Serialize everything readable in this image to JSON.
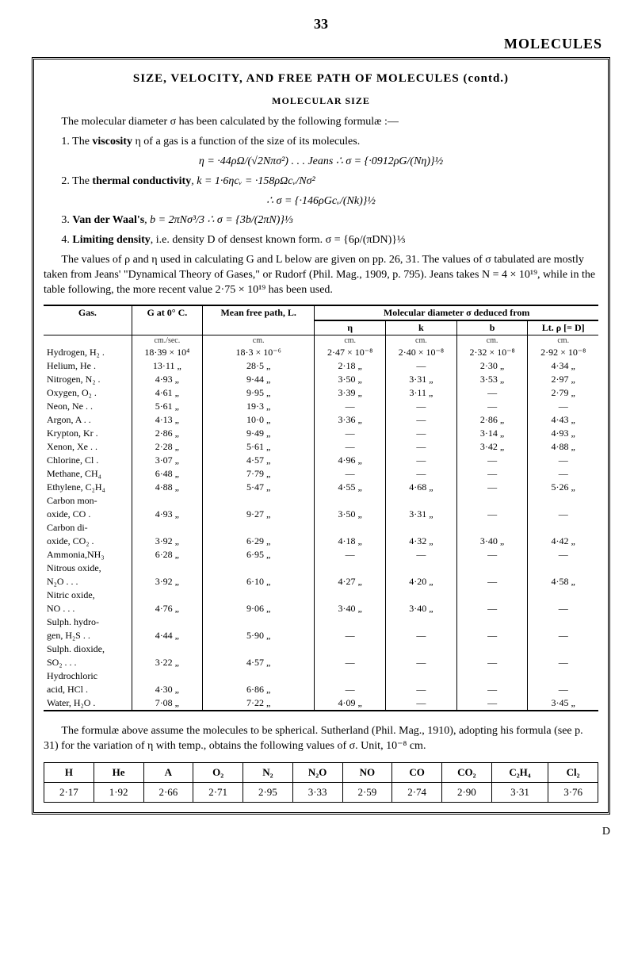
{
  "page_number": "33",
  "heading_right": "MOLECULES",
  "section_title": "SIZE, VELOCITY, AND FREE PATH OF MOLECULES (contd.)",
  "subhead": "MOLECULAR SIZE",
  "para_intro": "The molecular diameter σ has been calculated by the following formulæ :—",
  "item1_label": "1. The ",
  "item1_bold": "viscosity",
  "item1_tail": " η of a gas is a function of the size of its molecules.",
  "item1_formula": "η = ·44ρΩ/(√2Nπσ²)   .   .   .   Jeans   ∴ σ = {·0912ρG/(Nη)}½",
  "item2_label": "2. The ",
  "item2_bold": "thermal conductivity",
  "item2_tail": ", k = 1·6ηcᵥ = ·158ρΩcᵥ/Nσ²",
  "item2_formula": "∴ σ = {·146ρGcᵥ/(Nk)}½",
  "item3_label": "3. ",
  "item3_bold": "Van der Waal's",
  "item3_tail": ", b = 2πNσ³/3                      ∴ σ = {3b/(2πN)}⅓",
  "item4_label": "4. ",
  "item4_bold": "Limiting density",
  "item4_tail": ", i.e. density D of densest known form.   σ = {6ρ/(πDN)}⅓",
  "para_values": "The values of ρ and η used in calculating G and L below are given on pp. 26, 31. The values of σ tabulated are mostly taken from Jeans' \"Dynamical Theory of Gases,\" or Rudorf (Phil. Mag., 1909, p. 795). Jeans takes N = 4 × 10¹⁹, while in the table following, the more recent value 2·75 × 10¹⁹ has been used.",
  "table_headers": {
    "gas": "Gas.",
    "g": "G at 0° C.",
    "mean": "Mean free path, L.",
    "molec": "Molecular diameter σ deduced from",
    "eta": "η",
    "k": "k",
    "b": "b",
    "lt": "Lt. ρ [= D]"
  },
  "unit_row": {
    "g": "cm./sec.",
    "mean": "cm.",
    "eta": "cm.",
    "k": "cm.",
    "b": "cm.",
    "lt": "cm."
  },
  "rows": [
    {
      "gas": "Hydrogen, H₂ .",
      "g": "18·39 × 10⁴",
      "mean": "18·3 × 10⁻⁶",
      "eta": "2·47 × 10⁻⁸",
      "k": "2·40 × 10⁻⁸",
      "b": "2·32 × 10⁻⁸",
      "lt": "2·92 × 10⁻⁸"
    },
    {
      "gas": "Helium, He   .",
      "g": "13·11   „",
      "mean": "28·5     „",
      "eta": "2·18   „",
      "k": "—",
      "b": "2·30   „",
      "lt": "4·34   „"
    },
    {
      "gas": "Nitrogen, N₂  .",
      "g": "4·93   „",
      "mean": "9·44    „",
      "eta": "3·50   „",
      "k": "3·31   „",
      "b": "3·53   „",
      "lt": "2·97   „"
    },
    {
      "gas": "Oxygen, O₂   .",
      "g": "4·61   „",
      "mean": "9·95    „",
      "eta": "3·39   „",
      "k": "3·11   „",
      "b": "—",
      "lt": "2·79   „"
    },
    {
      "gas": "Neon, Ne .   .",
      "g": "5·61   „",
      "mean": "19·3    „",
      "eta": "—",
      "k": "—",
      "b": "—",
      "lt": "—"
    },
    {
      "gas": "Argon, A  .  .",
      "g": "4·13   „",
      "mean": "10·0    „",
      "eta": "3·36   „",
      "k": "—",
      "b": "2·86   „",
      "lt": "4·43   „"
    },
    {
      "gas": "Krypton, Kr  .",
      "g": "2·86   „",
      "mean": "9·49    „",
      "eta": "—",
      "k": "—",
      "b": "3·14   „",
      "lt": "4·93   „"
    },
    {
      "gas": "Xenon, Xe .  .",
      "g": "2·28   „",
      "mean": "5·61    „",
      "eta": "—",
      "k": "—",
      "b": "3·42   „",
      "lt": "4·88   „"
    },
    {
      "gas": "Chlorine, Cl  .",
      "g": "3·07   „",
      "mean": "4·57    „",
      "eta": "4·96   „",
      "k": "—",
      "b": "—",
      "lt": "—"
    },
    {
      "gas": "Methane, CH₄",
      "g": "6·48   „",
      "mean": "7·79    „",
      "eta": "—",
      "k": "—",
      "b": "—",
      "lt": "—"
    },
    {
      "gas": "Ethylene, C₂H₄",
      "g": "4·88   „",
      "mean": "5·47    „",
      "eta": "4·55   „",
      "k": "4·68   „",
      "b": "—",
      "lt": "5·26   „"
    },
    {
      "gas": "Carbon  mon-",
      "g": "",
      "mean": "",
      "eta": "",
      "k": "",
      "b": "",
      "lt": ""
    },
    {
      "gas": "  oxide, CO   .",
      "g": "4·93   „",
      "mean": "9·27    „",
      "eta": "3·50   „",
      "k": "3·31   „",
      "b": "—",
      "lt": "—"
    },
    {
      "gas": "Carbon  di-",
      "g": "",
      "mean": "",
      "eta": "",
      "k": "",
      "b": "",
      "lt": ""
    },
    {
      "gas": "  oxide, CO₂  .",
      "g": "3·92   „",
      "mean": "6·29    „",
      "eta": "4·18   „",
      "k": "4·32   „",
      "b": "3·40   „",
      "lt": "4·42   „"
    },
    {
      "gas": "Ammonia,NH₃",
      "g": "6·28   „",
      "mean": "6·95    „",
      "eta": "—",
      "k": "—",
      "b": "—",
      "lt": "—"
    },
    {
      "gas": "Nitrous oxide,",
      "g": "",
      "mean": "",
      "eta": "",
      "k": "",
      "b": "",
      "lt": ""
    },
    {
      "gas": "  N₂O  .  .  .",
      "g": "3·92   „",
      "mean": "6·10    „",
      "eta": "4·27   „",
      "k": "4·20   „",
      "b": "—",
      "lt": "4·58   „"
    },
    {
      "gas": "Nitric  oxide,",
      "g": "",
      "mean": "",
      "eta": "",
      "k": "",
      "b": "",
      "lt": ""
    },
    {
      "gas": "  NO   .  .  .",
      "g": "4·76   „",
      "mean": "9·06    „",
      "eta": "3·40   „",
      "k": "3·40   „",
      "b": "—",
      "lt": "—"
    },
    {
      "gas": "Sulph.  hydro-",
      "g": "",
      "mean": "",
      "eta": "",
      "k": "",
      "b": "",
      "lt": ""
    },
    {
      "gas": "  gen, H₂S .  .",
      "g": "4·44   „",
      "mean": "5·90    „",
      "eta": "—",
      "k": "—",
      "b": "—",
      "lt": "—"
    },
    {
      "gas": "Sulph. dioxide,",
      "g": "",
      "mean": "",
      "eta": "",
      "k": "",
      "b": "",
      "lt": ""
    },
    {
      "gas": "  SO₂  .  .  .",
      "g": "3·22   „",
      "mean": "4·57    „",
      "eta": "—",
      "k": "—",
      "b": "—",
      "lt": "—"
    },
    {
      "gas": "Hydrochloric",
      "g": "",
      "mean": "",
      "eta": "",
      "k": "",
      "b": "",
      "lt": ""
    },
    {
      "gas": "  acid, HCl   .",
      "g": "4·30   „",
      "mean": "6·86    „",
      "eta": "—",
      "k": "—",
      "b": "—",
      "lt": "—"
    },
    {
      "gas": "Water, H₂O  .",
      "g": "7·08   „",
      "mean": "7·22    „",
      "eta": "4·09   „",
      "k": "—",
      "b": "—",
      "lt": "3·45   „"
    }
  ],
  "para_bottom": "The formulæ above assume the molecules to be spherical.    Sutherland (Phil. Mag., 1910), adopting his formula (see p. 31) for the variation of η with temp., obtains the following values of σ.   Unit, 10⁻⁸ cm.",
  "small_table": {
    "headers": [
      "H",
      "He",
      "A",
      "O₂",
      "N₂",
      "N₂O",
      "NO",
      "CO",
      "CO₂",
      "C₂H₄",
      "Cl₂"
    ],
    "row": [
      "2·17",
      "1·92",
      "2·66",
      "2·71",
      "2·95",
      "3·33",
      "2·59",
      "2·74",
      "2·90",
      "3·31",
      "3·76"
    ]
  },
  "foot_d": "D"
}
